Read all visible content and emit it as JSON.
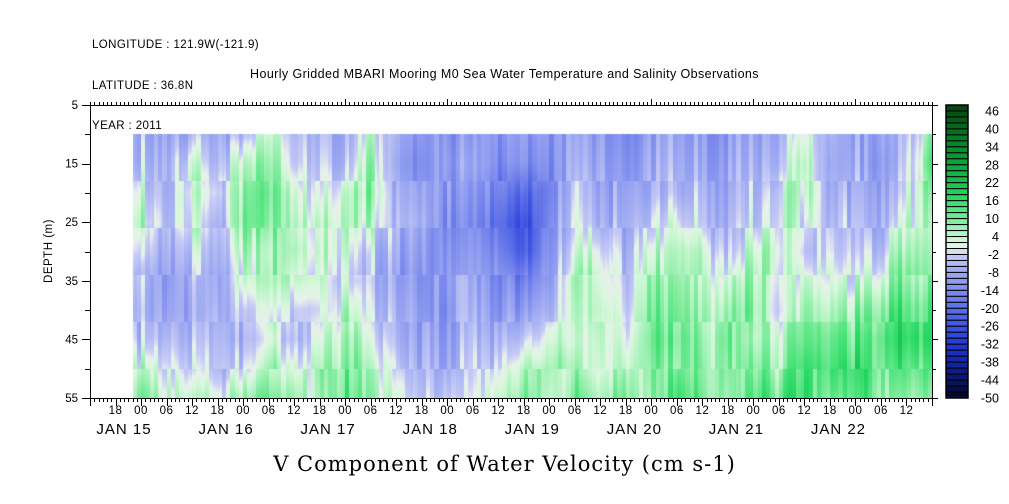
{
  "header": {
    "longitude": "LONGITUDE : 121.9W(-121.9)",
    "latitude": "LATITUDE : 36.8N",
    "year": "YEAR : 2011"
  },
  "title": "Hourly Gridded MBARI Mooring M0 Sea Water Temperature and Salinity Observations",
  "footer": "V Component of Water Velocity (cm s-1)",
  "y_axis": {
    "label": "DEPTH (m)",
    "major_ticks": [
      5,
      15,
      25,
      35,
      45,
      55
    ],
    "minor_ticks": [
      10,
      20,
      30,
      40,
      50
    ]
  },
  "x_axis": {
    "hour_tick_labels": [
      "18",
      "00",
      "06",
      "12",
      "18",
      "00",
      "06",
      "12",
      "18",
      "00",
      "06",
      "12",
      "18",
      "00",
      "06",
      "12",
      "18",
      "00",
      "06",
      "12",
      "18",
      "00",
      "06",
      "12",
      "18",
      "00",
      "06",
      "12",
      "18",
      "00",
      "06",
      "12"
    ],
    "day_labels": [
      "JAN 15",
      "JAN 16",
      "JAN 17",
      "JAN 18",
      "JAN 19",
      "JAN 20",
      "JAN 21",
      "JAN 22"
    ]
  },
  "colorbar": {
    "tick_labels": [
      "46",
      "40",
      "34",
      "28",
      "22",
      "16",
      "10",
      "4",
      "-2",
      "-8",
      "-14",
      "-20",
      "-26",
      "-32",
      "-38",
      "-44",
      "-50"
    ],
    "value_max": 48,
    "value_min": -50,
    "box_step": 2
  },
  "palette": [
    [
      -50,
      "#03052a"
    ],
    [
      -46,
      "#081050"
    ],
    [
      -42,
      "#0e1a7e"
    ],
    [
      -38,
      "#1525a8"
    ],
    [
      -34,
      "#1e32c8"
    ],
    [
      -30,
      "#2b43da"
    ],
    [
      -26,
      "#3e54e2"
    ],
    [
      -22,
      "#5266e6"
    ],
    [
      -18,
      "#6879ea"
    ],
    [
      -14,
      "#7e8cee"
    ],
    [
      -10,
      "#93a0f1"
    ],
    [
      -6,
      "#a9b3f3"
    ],
    [
      -2,
      "#c7ccf6"
    ],
    [
      0,
      "#e9f1ec"
    ],
    [
      2,
      "#d9f8dd"
    ],
    [
      6,
      "#aaf3bc"
    ],
    [
      10,
      "#79eb98"
    ],
    [
      14,
      "#49e37a"
    ],
    [
      18,
      "#24d65f"
    ],
    [
      24,
      "#14b94a"
    ],
    [
      30,
      "#0d9c38"
    ],
    [
      36,
      "#088028"
    ],
    [
      42,
      "#05611a"
    ],
    [
      48,
      "#03430f"
    ]
  ],
  "chart_data": {
    "type": "heatmap",
    "title": "V Component of Water Velocity (cm s-1)",
    "ylabel": "DEPTH (m)",
    "units": "cm s-1",
    "value_range_shown": [
      -50,
      48
    ],
    "depths_m": [
      10,
      15,
      20,
      25,
      30,
      35,
      40,
      45,
      50,
      55
    ],
    "no_data_above_depth_m": 10,
    "time_step_hours": 6,
    "time_offset_hours_rel_jan15_00": -6,
    "data_start_hours_rel_jan15_00": -2,
    "columns": [
      [
        6,
        4,
        6,
        8,
        6,
        4,
        2,
        4,
        8,
        10
      ],
      [
        -6,
        -4,
        2,
        6,
        2,
        -4,
        -6,
        -4,
        4,
        10
      ],
      [
        -8,
        -6,
        -6,
        -4,
        -6,
        -8,
        -6,
        -2,
        2,
        6
      ],
      [
        -6,
        2,
        6,
        4,
        -2,
        -6,
        -8,
        -6,
        -2,
        4
      ],
      [
        -8,
        -6,
        -2,
        -6,
        -8,
        -10,
        -8,
        -6,
        -4,
        2
      ],
      [
        -6,
        4,
        8,
        10,
        6,
        2,
        -4,
        -6,
        -2,
        6
      ],
      [
        4,
        8,
        10,
        8,
        4,
        6,
        2,
        -2,
        4,
        10
      ],
      [
        -4,
        -2,
        4,
        6,
        8,
        4,
        -2,
        -4,
        2,
        8
      ],
      [
        -6,
        -4,
        -2,
        2,
        4,
        2,
        -2,
        2,
        6,
        4
      ],
      [
        -6,
        -4,
        2,
        4,
        2,
        -2,
        4,
        8,
        10,
        12
      ],
      [
        2,
        6,
        8,
        4,
        -2,
        -4,
        -2,
        2,
        6,
        8
      ],
      [
        -8,
        -10,
        -8,
        -6,
        -8,
        -10,
        -8,
        -6,
        -2,
        2
      ],
      [
        -10,
        -12,
        -10,
        -8,
        -10,
        -12,
        -10,
        -8,
        -6,
        -4
      ],
      [
        -10,
        -8,
        -10,
        -12,
        -10,
        -8,
        -10,
        -8,
        -6,
        -2
      ],
      [
        -12,
        -10,
        -12,
        -14,
        -12,
        -10,
        -8,
        -6,
        -4,
        -2
      ],
      [
        -10,
        -12,
        -16,
        -20,
        -16,
        -12,
        -10,
        -6,
        -2,
        2
      ],
      [
        -12,
        -14,
        -24,
        -30,
        -28,
        -18,
        -12,
        -4,
        4,
        8
      ],
      [
        -10,
        -12,
        -14,
        -12,
        -10,
        -8,
        -4,
        2,
        6,
        4
      ],
      [
        -8,
        -6,
        -4,
        -2,
        2,
        6,
        4,
        2,
        6,
        10
      ],
      [
        -10,
        -8,
        -6,
        -4,
        2,
        6,
        8,
        6,
        4,
        8
      ],
      [
        -14,
        -12,
        -10,
        -8,
        -6,
        -4,
        -2,
        2,
        6,
        10
      ],
      [
        -12,
        -10,
        -8,
        -4,
        2,
        6,
        8,
        10,
        8,
        6
      ],
      [
        -8,
        -6,
        -4,
        2,
        6,
        8,
        10,
        12,
        10,
        14
      ],
      [
        -10,
        -8,
        -6,
        -4,
        2,
        4,
        6,
        8,
        10,
        12
      ],
      [
        -12,
        -10,
        -8,
        -6,
        -4,
        2,
        6,
        8,
        6,
        4
      ],
      [
        -8,
        -6,
        -4,
        -2,
        4,
        8,
        10,
        8,
        12,
        16
      ],
      [
        -6,
        -4,
        2,
        4,
        6,
        4,
        2,
        6,
        8,
        12
      ],
      [
        4,
        8,
        6,
        2,
        -2,
        4,
        8,
        10,
        14,
        16
      ],
      [
        -6,
        -8,
        -6,
        -4,
        -2,
        2,
        6,
        10,
        12,
        8
      ],
      [
        -10,
        -8,
        -6,
        -4,
        -2,
        2,
        8,
        12,
        16,
        14
      ],
      [
        -8,
        -10,
        -8,
        -6,
        -2,
        4,
        10,
        14,
        12,
        10
      ],
      [
        -6,
        -4,
        -2,
        2,
        6,
        10,
        14,
        16,
        12,
        8
      ],
      [
        10,
        14,
        8,
        4,
        6,
        8,
        12,
        14,
        10,
        6
      ]
    ]
  }
}
